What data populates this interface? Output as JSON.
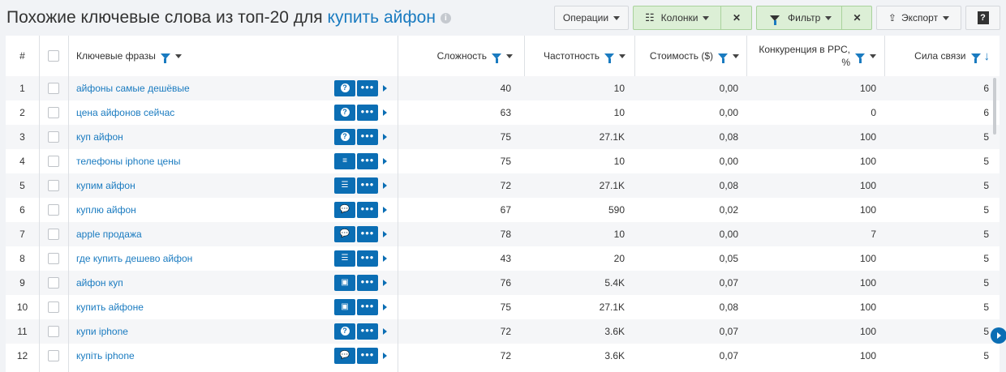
{
  "header": {
    "title": "Похожие ключевые слова из топ-20 для",
    "keyword": "купить айфон",
    "info_icon": "info-icon"
  },
  "toolbar": {
    "operations": "Операции",
    "columns": "Колонки",
    "filter": "Фильтр",
    "export": "Экспорт",
    "help": "?",
    "close": "✕"
  },
  "colors": {
    "accent": "#1a7bc0",
    "icon_button": "#0b6eb4",
    "active_green": "#dcefd6"
  },
  "columns": [
    "#",
    "Ключевые фразы",
    "Сложность",
    "Частотность",
    "Стоимость ($)",
    "Конкуренция в PPC, %",
    "Сила связи"
  ],
  "rows": [
    {
      "n": "1",
      "kw": "айфоны самые дешёвые",
      "icon": "question",
      "d": "40",
      "f": "10",
      "c": "0,00",
      "p": "100",
      "s": "6"
    },
    {
      "n": "2",
      "kw": "цена айфонов сейчас",
      "icon": "question",
      "d": "63",
      "f": "10",
      "c": "0,00",
      "p": "0",
      "s": "6"
    },
    {
      "n": "3",
      "kw": "куп айфон",
      "icon": "question",
      "d": "75",
      "f": "27.1K",
      "c": "0,08",
      "p": "100",
      "s": "5"
    },
    {
      "n": "4",
      "kw": "телефоны iphone цены",
      "icon": "text",
      "d": "75",
      "f": "10",
      "c": "0,00",
      "p": "100",
      "s": "5"
    },
    {
      "n": "5",
      "kw": "купим айфон",
      "icon": "list",
      "d": "72",
      "f": "27.1K",
      "c": "0,08",
      "p": "100",
      "s": "5"
    },
    {
      "n": "6",
      "kw": "куплю айфон",
      "icon": "chat",
      "d": "67",
      "f": "590",
      "c": "0,02",
      "p": "100",
      "s": "5"
    },
    {
      "n": "7",
      "kw": "apple продажа",
      "icon": "chat",
      "d": "78",
      "f": "10",
      "c": "0,00",
      "p": "7",
      "s": "5"
    },
    {
      "n": "8",
      "kw": "где купить дешево айфон",
      "icon": "list",
      "d": "43",
      "f": "20",
      "c": "0,05",
      "p": "100",
      "s": "5"
    },
    {
      "n": "9",
      "kw": "айфон куп",
      "icon": "image",
      "d": "76",
      "f": "5.4K",
      "c": "0,07",
      "p": "100",
      "s": "5"
    },
    {
      "n": "10",
      "kw": "купить айфоне",
      "icon": "image",
      "d": "75",
      "f": "27.1K",
      "c": "0,08",
      "p": "100",
      "s": "5"
    },
    {
      "n": "11",
      "kw": "купи iphone",
      "icon": "question",
      "d": "72",
      "f": "3.6K",
      "c": "0,07",
      "p": "100",
      "s": "5"
    },
    {
      "n": "12",
      "kw": "купіть iphone",
      "icon": "chat",
      "d": "72",
      "f": "3.6K",
      "c": "0,07",
      "p": "100",
      "s": "5"
    }
  ]
}
